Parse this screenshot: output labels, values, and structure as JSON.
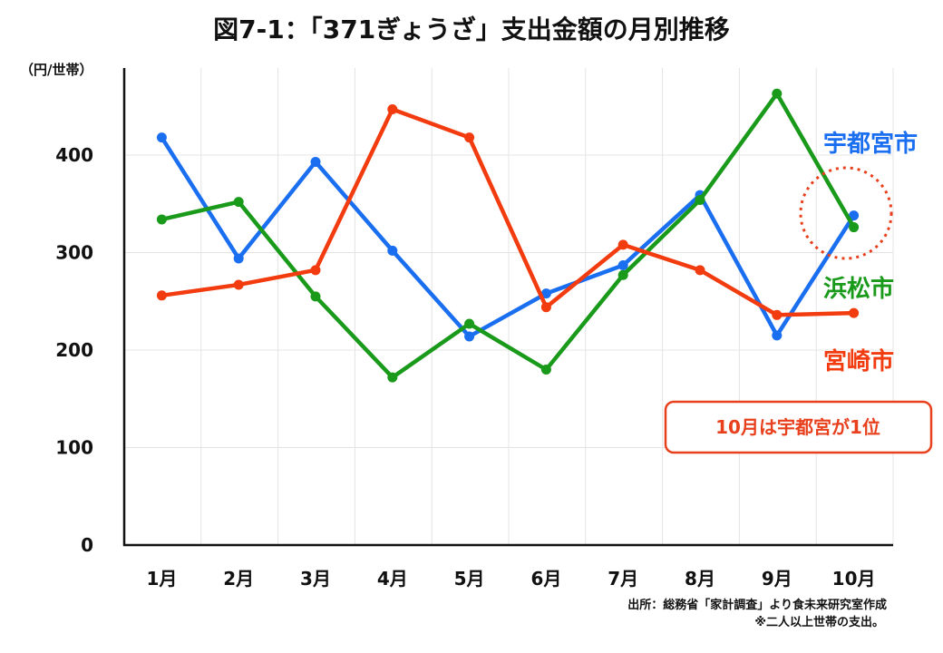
{
  "chart_data": {
    "type": "line",
    "title": "図7-1：「371ぎょうざ」支出金額の月別推移",
    "ylabel": "（円/世帯）",
    "xlabel": "",
    "ylim": [
      0,
      490
    ],
    "yticks": [
      0,
      100,
      200,
      300,
      400
    ],
    "grid": true,
    "categories": [
      "1月",
      "2月",
      "3月",
      "4月",
      "5月",
      "6月",
      "7月",
      "8月",
      "9月",
      "10月"
    ],
    "series": [
      {
        "name": "宇都宮市",
        "color": "#1a6ef0",
        "values": [
          418,
          294,
          393,
          302,
          214,
          258,
          287,
          359,
          215,
          338
        ]
      },
      {
        "name": "浜松市",
        "color": "#1a9a1a",
        "values": [
          334,
          352,
          255,
          172,
          227,
          180,
          277,
          354,
          463,
          326
        ]
      },
      {
        "name": "宮崎市",
        "color": "#f23c0f",
        "values": [
          256,
          267,
          282,
          447,
          418,
          244,
          308,
          282,
          236,
          238
        ]
      }
    ],
    "annotations": {
      "callout": "10月は宇都宮が1位",
      "source": "出所：総務省「家計調査」より食未来研究室作成",
      "footnote": "※二人以上世帯の支出。"
    }
  }
}
